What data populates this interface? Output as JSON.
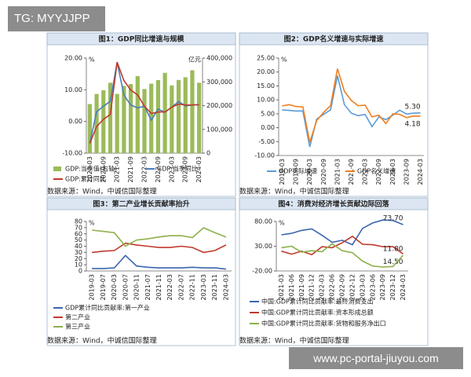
{
  "overlay": {
    "tag": "TG: MYYJJPP",
    "url": "www.pc-portal-jiuyou.com"
  },
  "chart_data": [
    {
      "type": "combo",
      "title": "图1：GDP同比增速与规模",
      "source": "数据来源：Wind，中诚信国际整理",
      "y_unit": "%",
      "y2_unit": "亿元",
      "categories": [
        "2020-03",
        null,
        "2020-09",
        null,
        "2021-03",
        null,
        "2021-09",
        null,
        "2022-03",
        null,
        "2022-09",
        null,
        "2023-03",
        null,
        "2023-09",
        null,
        "2024-03"
      ],
      "series": [
        {
          "name": "GDP:当季值(右轴)",
          "color": "#9bbb59",
          "axis": "y2",
          "values": [
            206504,
            248985,
            264976,
            296298,
            249310,
            282857,
            290964,
            324431,
            270178,
            292464,
            307627,
            338000,
            284997,
            308038,
            319465,
            349000,
            296299
          ]
        },
        {
          "name": "GDP:当季同比",
          "color": "#4a7ebb",
          "values": [
            -6.9,
            3.1,
            4.8,
            6.4,
            18.7,
            8.3,
            5.2,
            4.3,
            4.8,
            0.4,
            3.9,
            2.9,
            4.5,
            6.3,
            4.9,
            5.2,
            5.3
          ]
        },
        {
          "name": "GDP:累计同比",
          "color": "#c0392b",
          "values": [
            -6.9,
            -1.6,
            0.7,
            2.2,
            18.7,
            12.9,
            9.9,
            8.4,
            4.8,
            2.5,
            3.0,
            3.0,
            4.5,
            5.5,
            5.2,
            5.2,
            5.3
          ]
        }
      ],
      "ylim": [
        -10,
        20
      ],
      "yticks": [
        {
          "value": -10,
          "label": "-10.00"
        },
        {
          "value": 0,
          "label": "0.00"
        },
        {
          "value": 10,
          "label": "10.00"
        },
        {
          "value": 20,
          "label": "20.00"
        }
      ],
      "y2lim": [
        0,
        400000
      ],
      "y2ticks": [
        0,
        {
          "value": 100000,
          "label": "100,000"
        },
        {
          "value": 200000,
          "label": "200,000"
        },
        {
          "value": 300000,
          "label": "300,000"
        },
        {
          "value": 400000,
          "label": "400,000"
        }
      ]
    },
    {
      "type": "line",
      "title": "图2：GDP名义增速与实际增速",
      "source": "数据来源：Wind，中诚信国际整理",
      "y_unit": "%",
      "categories": [
        "2019-03",
        null,
        "2019-09",
        null,
        "2020-03",
        null,
        "2020-09",
        null,
        "2021-03",
        null,
        "2021-09",
        null,
        "2022-03",
        null,
        "2022-09",
        null,
        "2023-03",
        null,
        "2023-09",
        null,
        "2024-03"
      ],
      "series": [
        {
          "name": "GDP实际增速",
          "color": "#5b9bd5",
          "values": [
            6.4,
            6.2,
            6.0,
            6.0,
            -6.9,
            3.1,
            4.8,
            6.4,
            18.7,
            8.3,
            5.2,
            4.3,
            4.8,
            0.4,
            3.9,
            2.9,
            4.5,
            6.3,
            4.9,
            5.2,
            5.3
          ],
          "value_labels": [
            null,
            null,
            null,
            null,
            null,
            null,
            null,
            null,
            null,
            null,
            null,
            null,
            null,
            null,
            null,
            null,
            null,
            null,
            null,
            null,
            "5.30"
          ]
        },
        {
          "name": "GDP名义增速",
          "color": "#f07e1e",
          "values": [
            7.8,
            8.3,
            7.6,
            7.5,
            -5.3,
            2.6,
            5.5,
            7.9,
            21.2,
            13.1,
            9.8,
            7.9,
            8.1,
            3.9,
            4.5,
            1.5,
            5.0,
            4.8,
            3.6,
            4.2,
            4.18
          ],
          "value_labels": [
            null,
            null,
            null,
            null,
            null,
            null,
            null,
            null,
            null,
            null,
            null,
            null,
            null,
            null,
            null,
            null,
            null,
            null,
            null,
            null,
            "4.18"
          ]
        }
      ],
      "ylim": [
        -10,
        25
      ],
      "yticks": [
        {
          "value": -10,
          "label": "-10.00"
        },
        {
          "value": -5,
          "label": "-5.00"
        },
        {
          "value": 0,
          "label": "0.00"
        },
        {
          "value": 5,
          "label": "5.00"
        },
        {
          "value": 10,
          "label": "10.00"
        },
        {
          "value": 15,
          "label": "15.00"
        },
        {
          "value": 20,
          "label": "20.00"
        },
        {
          "value": 25,
          "label": "25.00"
        }
      ]
    },
    {
      "type": "line",
      "title": "图3：第二产业增长贡献率抬升",
      "source": "数据来源：Wind，中诚信国际整理",
      "y_unit": "%",
      "categories": [
        "2019-03",
        "2019-07",
        "2020-03",
        "2020-07",
        "2020-11",
        "2021-07",
        "2021-11",
        "2022-03",
        "2022-07",
        "2022-11",
        "2023-03",
        "2023-11",
        "2024-03"
      ],
      "series": [
        {
          "name": "GDP累计同比贡献率:第一产业",
          "color": "#3a66b0",
          "values": [
            4,
            4,
            5,
            25,
            8,
            6,
            5,
            5,
            5,
            6,
            5,
            5,
            3
          ]
        },
        {
          "name": "第二产业",
          "color": "#c0392b",
          "values": [
            30,
            32,
            33,
            45,
            42,
            40,
            38,
            38,
            40,
            38,
            30,
            33,
            42
          ]
        },
        {
          "name": "第三产业",
          "color": "#8db04a",
          "values": [
            66,
            64,
            62,
            40,
            50,
            52,
            55,
            57,
            57,
            54,
            70,
            62,
            55
          ]
        }
      ],
      "ylim": [
        0,
        80
      ],
      "yticks": [
        0,
        10,
        20,
        30,
        40,
        50,
        60,
        70,
        80
      ]
    },
    {
      "type": "line",
      "title": "图4：消费对经济增长贡献边际回落",
      "source": "数据来源：Wind，中诚信国际整理",
      "y_unit": "%",
      "categories": [
        "2021-03",
        "2021-06",
        "2021-09",
        "2021-12",
        "2022-03",
        "2022-06",
        "2022-09",
        "2022-12",
        "2023-03",
        "2023-06",
        "2023-09",
        "2023-12",
        "2024-03"
      ],
      "series": [
        {
          "name": "中国:GDP累计同比贡献率:最终消费支出",
          "color": "#3a66b0",
          "values": [
            53,
            56,
            62,
            65,
            52,
            38,
            42,
            33,
            66,
            77,
            83,
            82,
            73.7
          ],
          "value_labels": [
            null,
            null,
            null,
            null,
            null,
            null,
            null,
            null,
            null,
            null,
            null,
            null,
            "73.70"
          ]
        },
        {
          "name": "中国:GDP累计同比贡献率:资本形成总额",
          "color": "#c0392b",
          "values": [
            20,
            14,
            20,
            13,
            29,
            27,
            37,
            50,
            34,
            33,
            29,
            29,
            14.5
          ],
          "value_labels": [
            null,
            null,
            null,
            null,
            null,
            null,
            null,
            null,
            null,
            null,
            null,
            null,
            "14.50"
          ]
        },
        {
          "name": "中国:GDP累计同比贡献率:货物和服务净出口",
          "color": "#8db04a",
          "values": [
            27,
            30,
            18,
            21,
            19,
            35,
            21,
            17,
            0,
            -10,
            -12,
            -11,
            11.8
          ],
          "value_labels": [
            null,
            null,
            null,
            null,
            null,
            null,
            null,
            null,
            null,
            null,
            null,
            null,
            "11.80"
          ]
        }
      ],
      "ylim": [
        -20,
        80
      ],
      "yticks": [
        {
          "value": -20,
          "label": "-20.00"
        },
        {
          "value": 30,
          "label": "30.00"
        },
        {
          "value": 80,
          "label": "80.00"
        }
      ]
    }
  ]
}
